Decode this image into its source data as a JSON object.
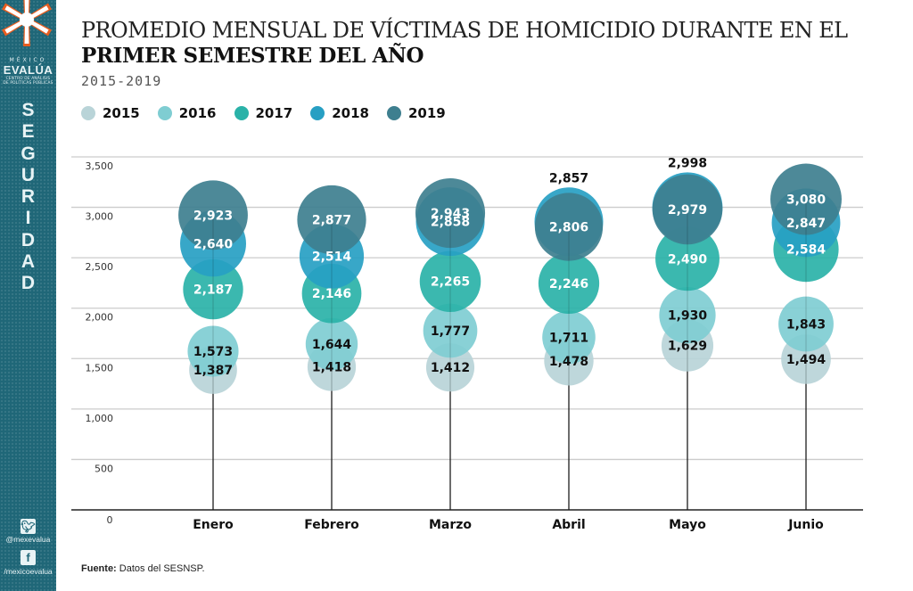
{
  "sidebar": {
    "logo": {
      "line1": "MÉXICO",
      "line2": "EVALÚA",
      "line3": "CENTRO DE ANÁLISIS",
      "line4": "DE POLÍTICAS PÚBLICAS"
    },
    "section_letters": [
      "S",
      "E",
      "G",
      "U",
      "R",
      "I",
      "D",
      "A",
      "D"
    ],
    "twitter": {
      "icon": "twitter-icon",
      "handle": "@mexevalua"
    },
    "facebook": {
      "icon": "facebook-icon",
      "handle": "/mexicoevalua"
    }
  },
  "header": {
    "title_line1": "PROMEDIO MENSUAL DE VÍCTIMAS DE HOMICIDIO DURANTE EN EL",
    "title_line2": "PRIMER SEMESTRE DEL AÑO",
    "subtitle": "2015-2019"
  },
  "source": {
    "label": "Fuente:",
    "text": "Datos del SESNSP."
  },
  "chart_data": {
    "type": "scatter",
    "subtype": "bubble-lollipop",
    "title": "PROMEDIO MENSUAL DE VÍCTIMAS DE HOMICIDIO DURANTE EN EL PRIMER SEMESTRE DEL AÑO",
    "subtitle": "2015-2019",
    "xlabel": "",
    "ylabel": "",
    "categories": [
      "Enero",
      "Febrero",
      "Marzo",
      "Abril",
      "Mayo",
      "Junio"
    ],
    "ylim": [
      0,
      3500
    ],
    "yticks": [
      0,
      500,
      1000,
      1500,
      2000,
      2500,
      3000,
      3500
    ],
    "ytick_labels": [
      "0",
      "500",
      "1,000",
      "1,500",
      "2,000",
      "2,500",
      "3,000",
      "3,500"
    ],
    "grid": true,
    "legend_position": "top-left",
    "series": [
      {
        "name": "2015",
        "color": "#b9d4d8",
        "text_color": "#111111",
        "values": [
          1387,
          1418,
          1412,
          1478,
          1629,
          1494
        ],
        "labels": [
          "1,387",
          "1,418",
          "1,412",
          "1,478",
          "1,629",
          "1,494"
        ]
      },
      {
        "name": "2016",
        "color": "#7fcdd2",
        "text_color": "#111111",
        "values": [
          1573,
          1644,
          1777,
          1711,
          1930,
          1843
        ],
        "labels": [
          "1,573",
          "1,644",
          "1,777",
          "1,711",
          "1,930",
          "1,843"
        ]
      },
      {
        "name": "2017",
        "color": "#2ab2a8",
        "text_color": "#ffffff",
        "values": [
          2187,
          2146,
          2265,
          2246,
          2490,
          2584
        ],
        "labels": [
          "2,187",
          "2,146",
          "2,265",
          "2,246",
          "2,490",
          "2,584"
        ]
      },
      {
        "name": "2018",
        "color": "#279fc3",
        "text_color": "#ffffff",
        "values": [
          2640,
          2514,
          2858,
          2857,
          2998,
          2847
        ],
        "labels": [
          "2,640",
          "2,514",
          "2,858",
          "2,857",
          "2,998",
          "2,847"
        ],
        "label_above": [
          false,
          false,
          false,
          true,
          true,
          false
        ]
      },
      {
        "name": "2019",
        "color": "#3e7f8f",
        "text_color": "#ffffff",
        "values": [
          2923,
          2877,
          2943,
          2806,
          2979,
          3080
        ],
        "labels": [
          "2,923",
          "2,877",
          "2,943",
          "2,806",
          "2,979",
          "3,080"
        ]
      }
    ]
  }
}
